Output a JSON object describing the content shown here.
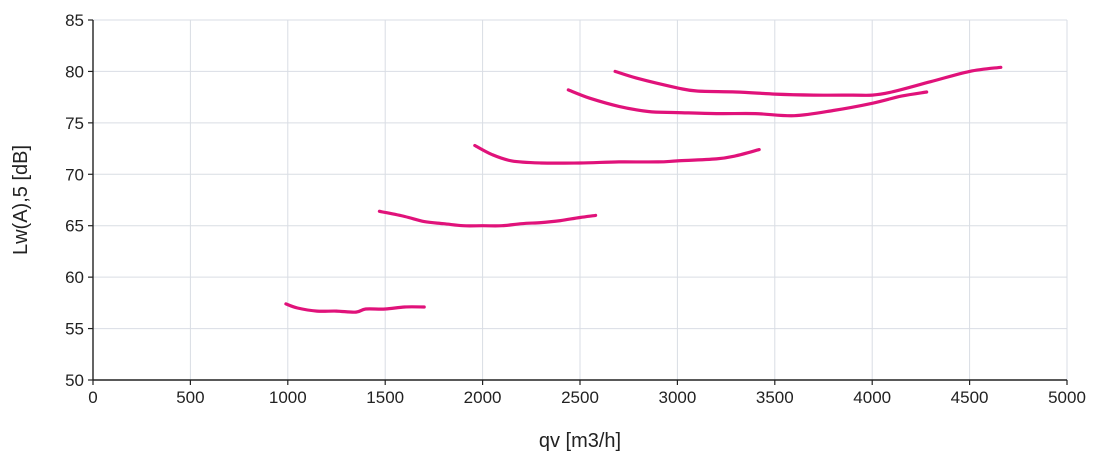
{
  "chart_data": {
    "type": "line",
    "xlabel": "qv [m3/h]",
    "ylabel": "Lw(A),5 [dB]",
    "xlim": [
      0,
      5000
    ],
    "ylim": [
      50,
      85
    ],
    "xticks": [
      "0",
      "500",
      "1000",
      "1500",
      "2000",
      "2500",
      "3000",
      "3500",
      "4000",
      "4500",
      "5000"
    ],
    "yticks": [
      "50",
      "55",
      "60",
      "65",
      "70",
      "75",
      "80",
      "85"
    ],
    "grid": true,
    "line_color": "#e0127a",
    "series": [
      {
        "x": [
          990,
          1050,
          1150,
          1250,
          1350,
          1400,
          1500,
          1600,
          1700
        ],
        "y": [
          57.4,
          57.0,
          56.7,
          56.7,
          56.6,
          56.9,
          56.9,
          57.1,
          57.1
        ]
      },
      {
        "x": [
          1470,
          1600,
          1700,
          1800,
          1900,
          2000,
          2100,
          2200,
          2300,
          2400,
          2500,
          2580
        ],
        "y": [
          66.4,
          65.9,
          65.4,
          65.2,
          65.0,
          65.0,
          65.0,
          65.2,
          65.3,
          65.5,
          65.8,
          66.0
        ]
      },
      {
        "x": [
          1960,
          2050,
          2150,
          2300,
          2500,
          2700,
          2900,
          3000,
          3200,
          3300,
          3420
        ],
        "y": [
          72.8,
          71.9,
          71.3,
          71.1,
          71.1,
          71.2,
          71.2,
          71.3,
          71.5,
          71.8,
          72.4
        ]
      },
      {
        "x": [
          2440,
          2550,
          2700,
          2850,
          3000,
          3200,
          3400,
          3600,
          3800,
          4000,
          4150,
          4280
        ],
        "y": [
          78.2,
          77.4,
          76.6,
          76.1,
          76.0,
          75.9,
          75.9,
          75.7,
          76.2,
          76.9,
          77.6,
          78.0
        ]
      },
      {
        "x": [
          2680,
          2800,
          3000,
          3100,
          3300,
          3500,
          3700,
          3900,
          4000,
          4100,
          4300,
          4500,
          4660
        ],
        "y": [
          80.0,
          79.3,
          78.4,
          78.1,
          78.0,
          77.8,
          77.7,
          77.7,
          77.7,
          78.0,
          79.0,
          80.0,
          80.4
        ]
      }
    ]
  }
}
